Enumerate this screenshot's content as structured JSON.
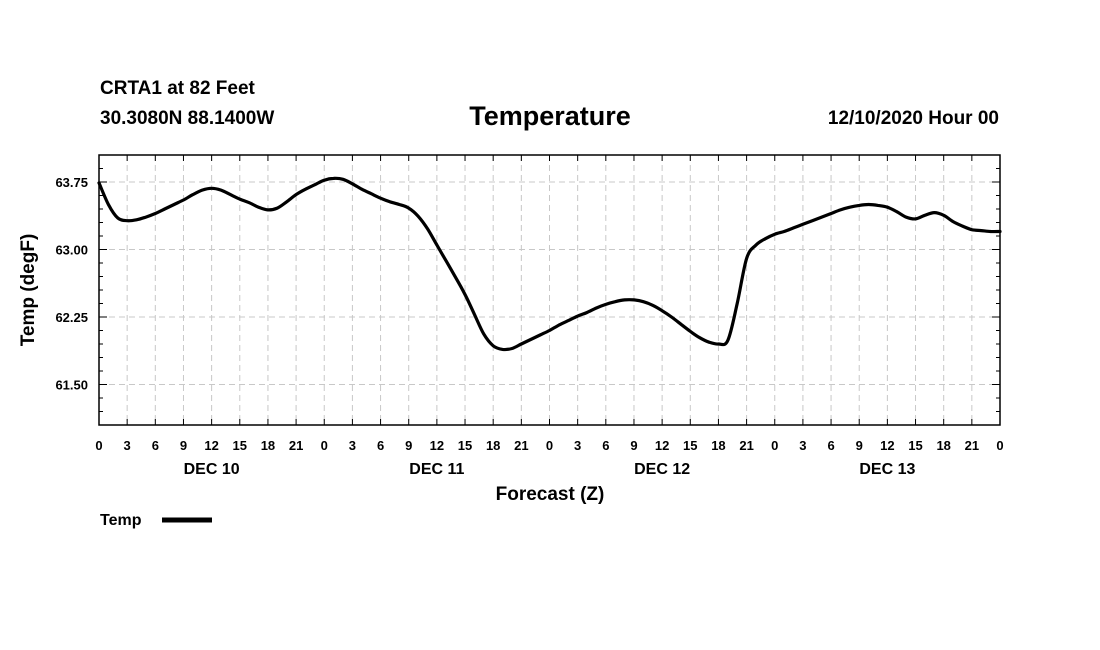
{
  "header": {
    "station": "CRTA1 at 82 Feet",
    "location": "30.3080N 88.1400W",
    "title": "Temperature",
    "run": "12/10/2020 Hour 00"
  },
  "chart_data": {
    "type": "line",
    "title": "Temperature",
    "xlabel": "Forecast (Z)",
    "ylabel": "Temp (degF)",
    "x_unit": "forecast hour from 12/10/2020 00Z",
    "xlim": [
      0,
      96
    ],
    "ylim": [
      61.05,
      64.05
    ],
    "grid": true,
    "yticks": [
      61.5,
      62.25,
      63.0,
      63.75
    ],
    "ytick_labels": [
      "61.50",
      "62.25",
      "63.00",
      "63.75"
    ],
    "x_hour_ticks": [
      0,
      3,
      6,
      9,
      12,
      15,
      18,
      21,
      24,
      27,
      30,
      33,
      36,
      39,
      42,
      45,
      48,
      51,
      54,
      57,
      60,
      63,
      66,
      69,
      72,
      75,
      78,
      81,
      84,
      87,
      90,
      93,
      96
    ],
    "x_hour_labels": [
      "0",
      "3",
      "6",
      "9",
      "12",
      "15",
      "18",
      "21",
      "0",
      "3",
      "6",
      "9",
      "12",
      "15",
      "18",
      "21",
      "0",
      "3",
      "6",
      "9",
      "12",
      "15",
      "18",
      "21",
      "0",
      "3",
      "6",
      "9",
      "12",
      "15",
      "18",
      "21",
      "0"
    ],
    "day_labels": [
      {
        "label": "DEC 10",
        "hour": 12
      },
      {
        "label": "DEC 11",
        "hour": 36
      },
      {
        "label": "DEC 12",
        "hour": 60
      },
      {
        "label": "DEC 13",
        "hour": 84
      }
    ],
    "legend": "bottom-left",
    "series": [
      {
        "name": "Temp",
        "x": [
          0,
          1,
          2,
          3,
          4,
          5,
          6,
          7,
          8,
          9,
          10,
          11,
          12,
          13,
          14,
          15,
          16,
          17,
          18,
          19,
          20,
          21,
          22,
          23,
          24,
          25,
          26,
          27,
          28,
          29,
          30,
          31,
          32,
          33,
          34,
          35,
          36,
          37,
          38,
          39,
          40,
          41,
          42,
          43,
          44,
          45,
          46,
          47,
          48,
          49,
          50,
          51,
          52,
          53,
          54,
          55,
          56,
          57,
          58,
          59,
          60,
          61,
          62,
          63,
          64,
          65,
          66,
          67,
          68,
          69,
          70,
          71,
          72,
          73,
          74,
          75,
          76,
          77,
          78,
          79,
          80,
          81,
          82,
          83,
          84,
          85,
          86,
          87,
          88,
          89,
          90,
          91,
          92,
          93,
          94,
          95,
          96
        ],
        "y": [
          63.74,
          63.5,
          63.35,
          63.32,
          63.33,
          63.36,
          63.4,
          63.45,
          63.5,
          63.55,
          63.61,
          63.66,
          63.68,
          63.66,
          63.61,
          63.56,
          63.52,
          63.47,
          63.44,
          63.46,
          63.53,
          63.61,
          63.67,
          63.72,
          63.77,
          63.79,
          63.78,
          63.73,
          63.67,
          63.62,
          63.57,
          63.53,
          63.5,
          63.46,
          63.37,
          63.23,
          63.05,
          62.87,
          62.69,
          62.5,
          62.28,
          62.06,
          61.93,
          61.89,
          61.9,
          61.95,
          62.0,
          62.05,
          62.1,
          62.16,
          62.21,
          62.26,
          62.3,
          62.35,
          62.39,
          62.42,
          62.44,
          62.44,
          62.42,
          62.38,
          62.32,
          62.25,
          62.17,
          62.09,
          62.02,
          61.97,
          61.95,
          61.99,
          62.4,
          62.9,
          63.05,
          63.12,
          63.17,
          63.2,
          63.24,
          63.28,
          63.32,
          63.36,
          63.4,
          63.44,
          63.47,
          63.49,
          63.5,
          63.49,
          63.47,
          63.42,
          63.36,
          63.34,
          63.38,
          63.41,
          63.38,
          63.31,
          63.26,
          63.22,
          63.21,
          63.2,
          63.2
        ]
      }
    ]
  }
}
